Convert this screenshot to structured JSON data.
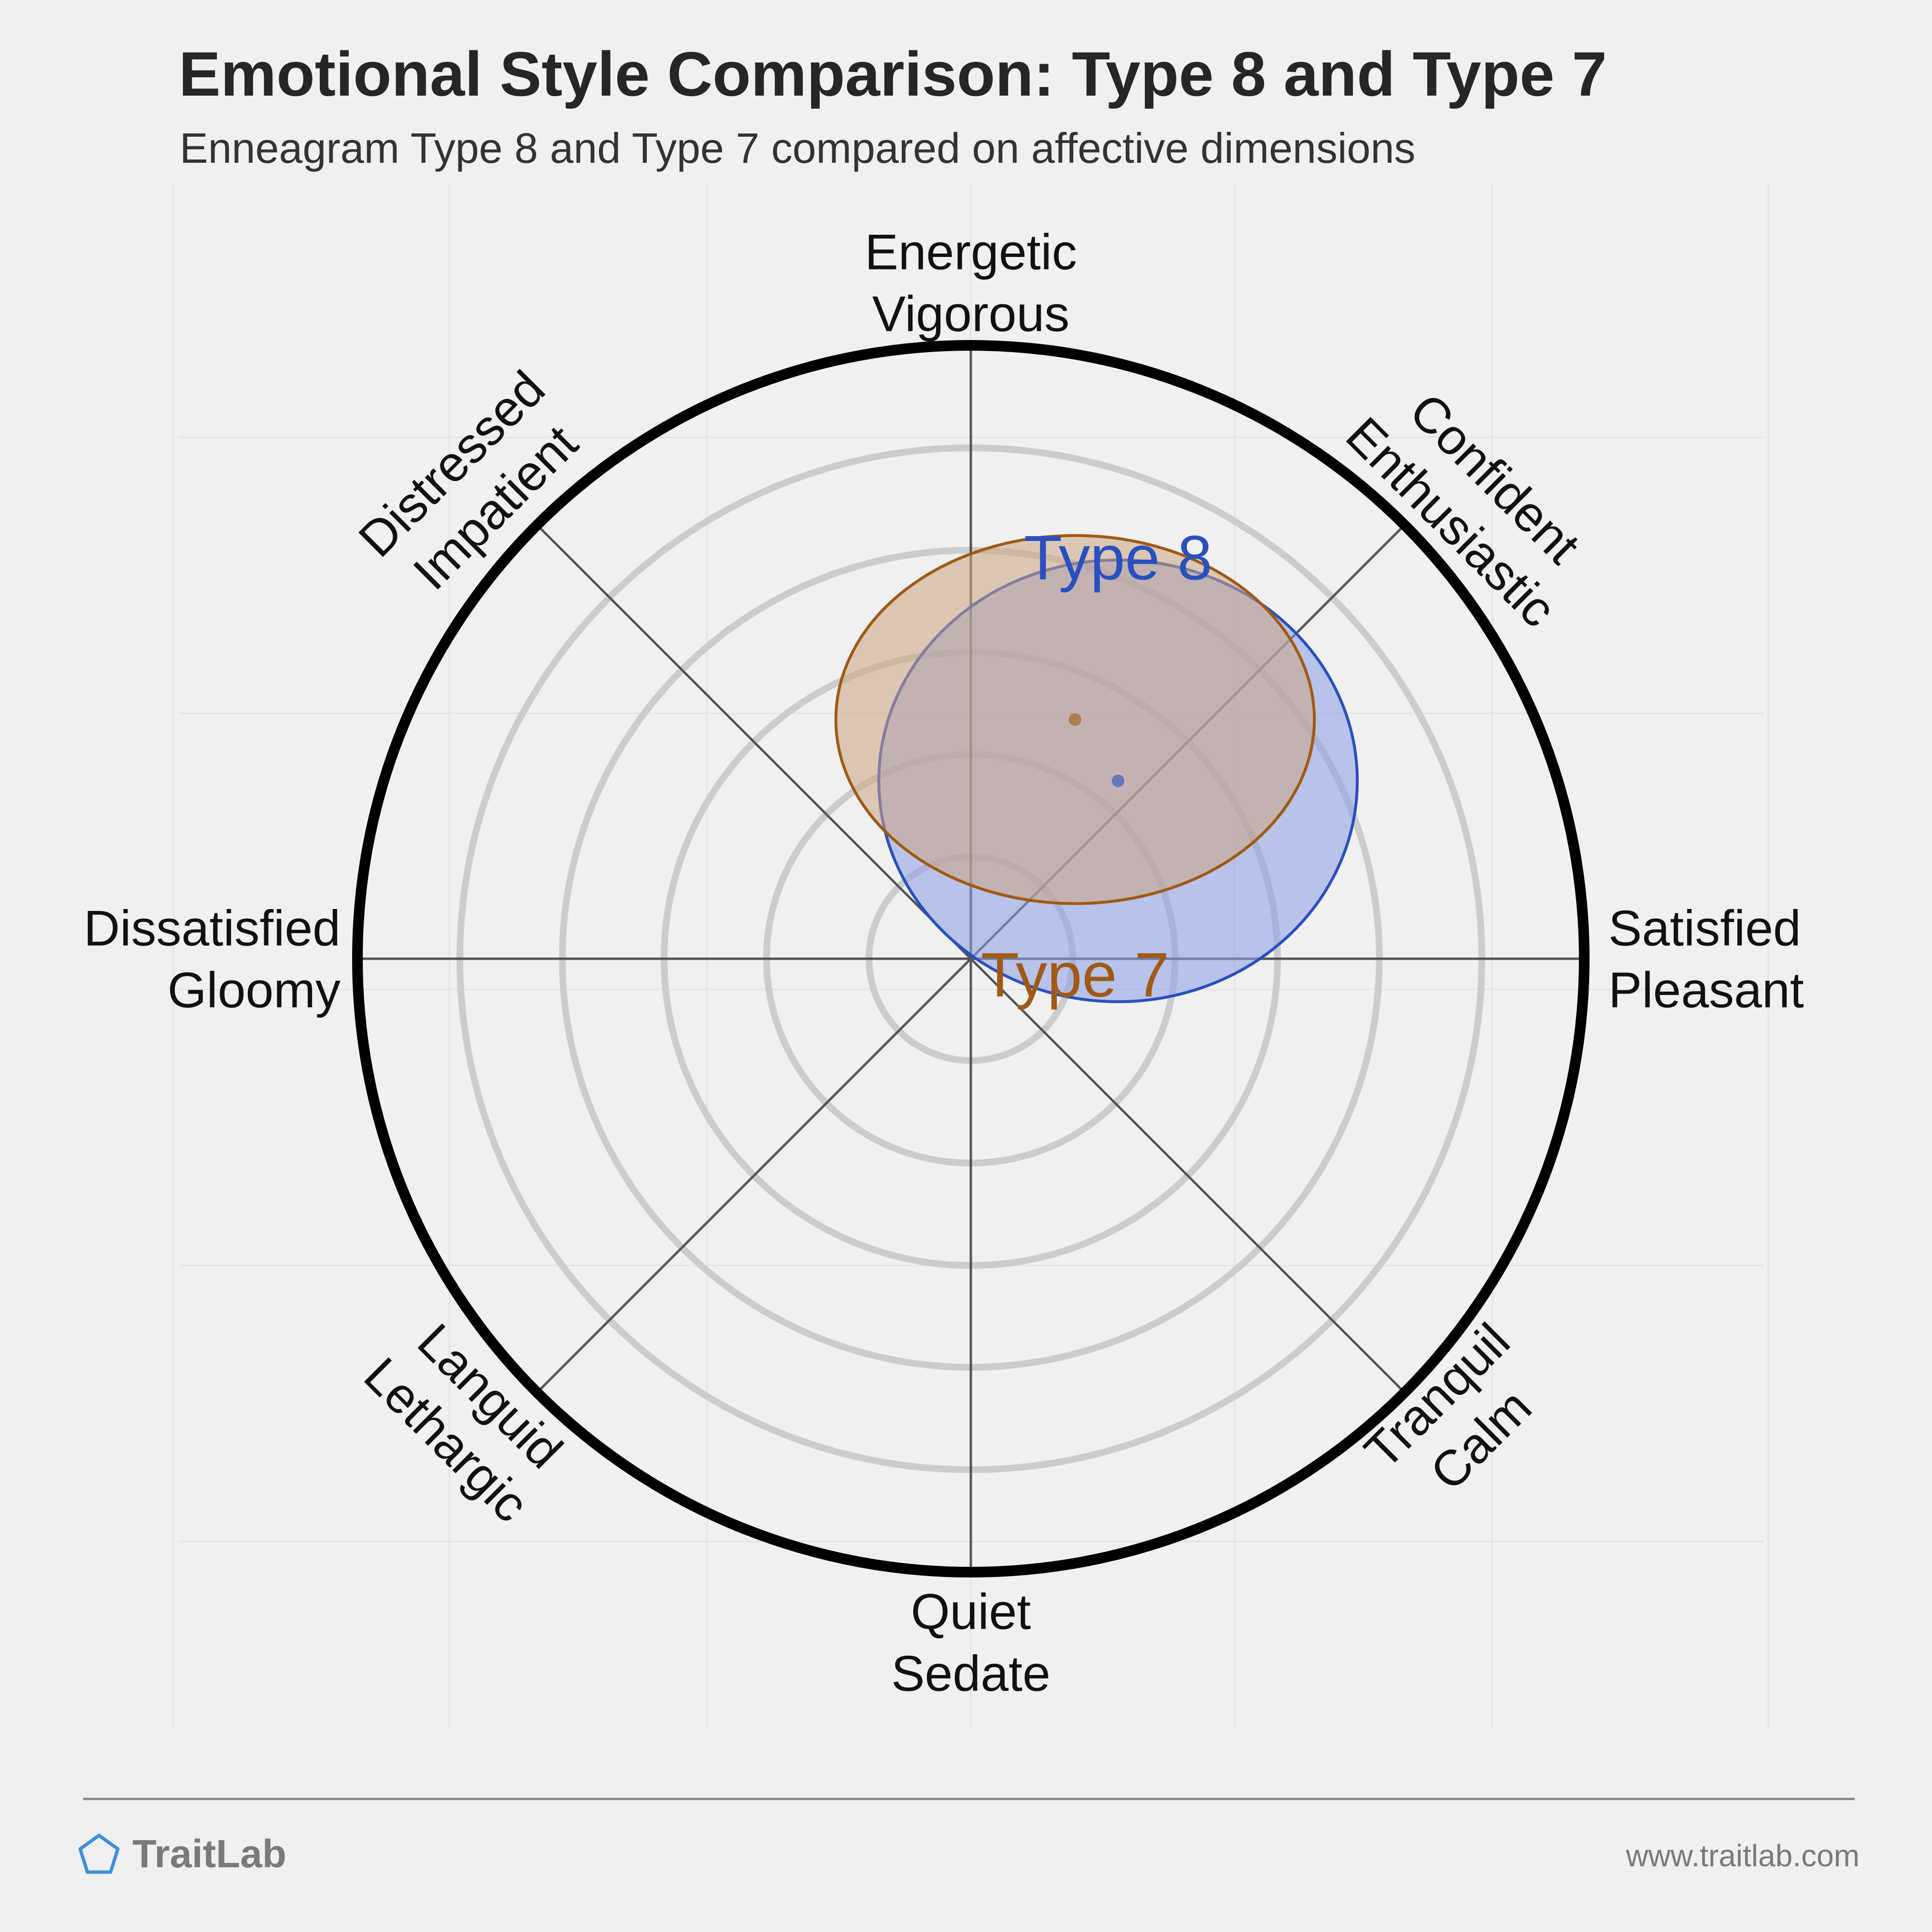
{
  "title": "Emotional Style Comparison: Type 8 and Type 7",
  "subtitle": "Enneagram Type 8 and Type 7 compared on affective dimensions",
  "brand": "TraitLab",
  "website": "www.traitlab.com",
  "chart_data": {
    "type": "scatter",
    "title": "Emotional Style Comparison: Type 8 and Type 7",
    "subtitle": "Enneagram Type 8 and Type 7 compared on affective dimensions",
    "xlim": [
      -1,
      1
    ],
    "ylim": [
      -1,
      1
    ],
    "grid": true,
    "rings": [
      0.166,
      0.333,
      0.5,
      0.666,
      0.833
    ],
    "axis_labels": {
      "top": [
        "Energetic",
        "Vigorous"
      ],
      "top_right": [
        "Confident",
        "Enthusiastic"
      ],
      "right": [
        "Satisfied",
        "Pleasant"
      ],
      "bottom_right": [
        "Tranquil",
        "Calm"
      ],
      "bottom": [
        "Quiet",
        "Sedate"
      ],
      "bottom_left": [
        "Languid",
        "Lethargic"
      ],
      "left": [
        "Dissatisfied",
        "Gloomy"
      ],
      "top_left": [
        "Distressed",
        "Impatient"
      ]
    },
    "series": [
      {
        "name": "Type 8",
        "color": "#2a4fbf",
        "fill": "#8a9de8",
        "center": [
          0.24,
          0.29
        ],
        "radius": [
          0.39,
          0.36
        ]
      },
      {
        "name": "Type 7",
        "color": "#a05a14",
        "fill": "#caa682",
        "center": [
          0.17,
          0.39
        ],
        "radius": [
          0.39,
          0.3
        ]
      }
    ]
  }
}
